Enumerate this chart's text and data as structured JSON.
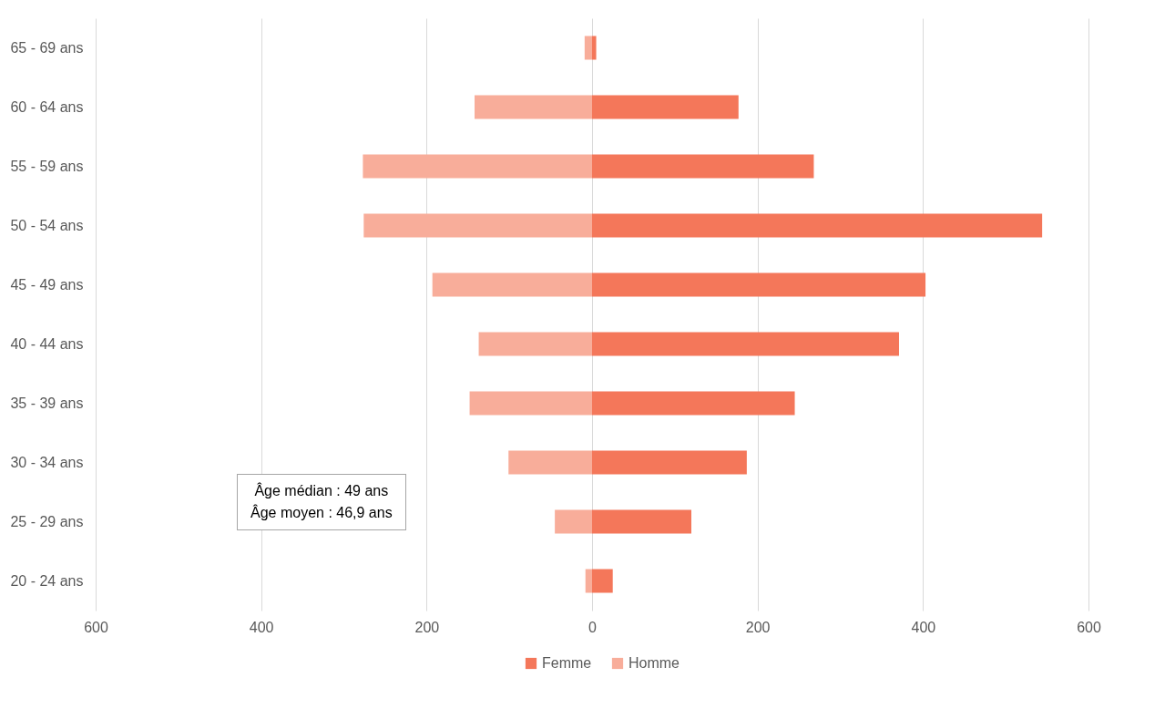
{
  "chart_data": {
    "type": "bar",
    "orientation": "horizontal",
    "categories": [
      "65 - 69 ans",
      "60 - 64 ans",
      "55 - 59 ans",
      "50 - 54 ans",
      "45 - 49 ans",
      "40 - 44 ans",
      "35 - 39 ans",
      "30 - 34 ans",
      "25 - 29 ans",
      "20 - 24 ans"
    ],
    "series": [
      {
        "name": "Femme",
        "color": "#f4775a",
        "values": [
          5,
          177,
          268,
          544,
          403,
          371,
          245,
          187,
          120,
          25
        ]
      },
      {
        "name": "Homme",
        "color": "#f8ad9a",
        "values": [
          -9,
          -142,
          -277,
          -276,
          -193,
          -137,
          -148,
          -101,
          -45,
          -8
        ]
      }
    ],
    "xlim": [
      -600,
      600
    ],
    "xticks": [
      {
        "value": -600,
        "label": "600"
      },
      {
        "value": -400,
        "label": "400"
      },
      {
        "value": -200,
        "label": "200"
      },
      0,
      200,
      400,
      600
    ],
    "grid": "x",
    "legend": "bottom",
    "stacked": true,
    "annotations": [
      "Âge médian : 49 ans",
      "Âge moyen : 46,9 ans"
    ]
  }
}
